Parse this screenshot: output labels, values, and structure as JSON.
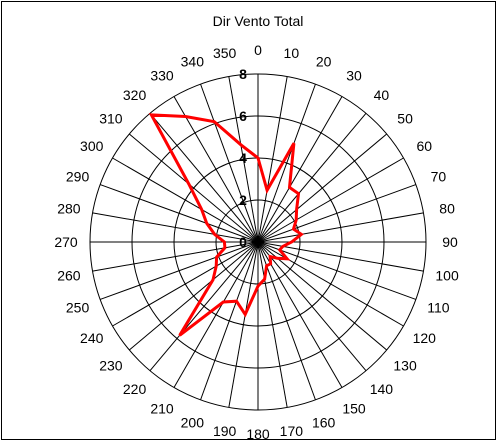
{
  "chart_data": {
    "type": "radar",
    "title": "Dir Vento Total",
    "categories": [
      "0",
      "10",
      "20",
      "30",
      "40",
      "50",
      "60",
      "70",
      "80",
      "90",
      "100",
      "110",
      "120",
      "130",
      "140",
      "150",
      "160",
      "170",
      "180",
      "190",
      "200",
      "210",
      "220",
      "230",
      "240",
      "250",
      "260",
      "270",
      "280",
      "290",
      "300",
      "310",
      "320",
      "330",
      "340",
      "350"
    ],
    "series": [
      {
        "color": "#ff0000",
        "values": [
          4,
          2.5,
          5,
          3,
          3,
          2.4,
          2.1,
          1.8,
          2.1,
          1.6,
          1.2,
          1.1,
          1.6,
          1.2,
          0.9,
          1.2,
          1.2,
          1.8,
          2.1,
          3.5,
          3,
          3.3,
          5.8,
          2.8,
          2.3,
          2.1,
          1.6,
          1.6,
          2.1,
          2.6,
          3.1,
          4.3,
          7.9,
          6.9,
          6.1,
          4.7
        ]
      }
    ],
    "rlim": [
      0,
      8
    ],
    "rticks": [
      "0",
      "2",
      "4",
      "6",
      "8"
    ],
    "grid": true,
    "legend": "none"
  }
}
